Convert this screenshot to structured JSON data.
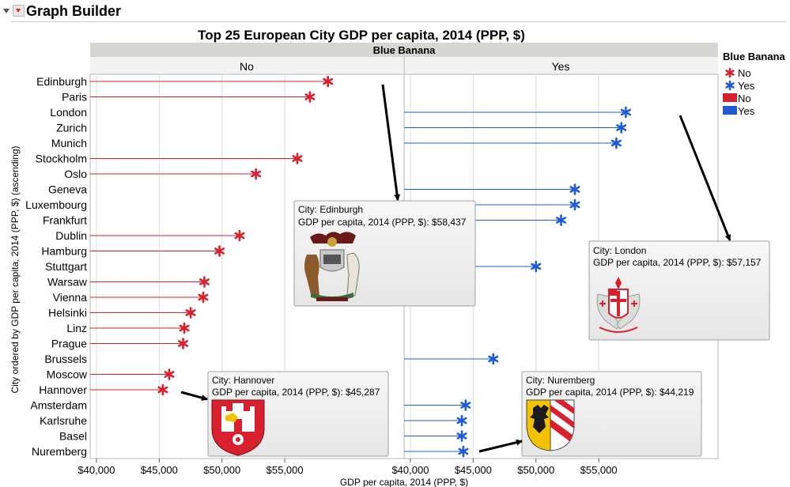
{
  "window": {
    "title": "Graph Builder"
  },
  "chart_data": {
    "type": "dot plot",
    "title": "Top 25 European City GDP per capita, 2014 (PPP, $)",
    "group_title": "Blue Banana",
    "panels": [
      "No",
      "Yes"
    ],
    "xlabel": "GDP per capita, 2014 (PPP, $)",
    "ylabel": "City ordered by GDP per capita, 2014 (PPP, $) (ascending)",
    "xlim": [
      39500,
      64500
    ],
    "x_ticks": [
      40000,
      45000,
      50000,
      55000
    ],
    "x_tick_labels": [
      "$40,000",
      "$45,000",
      "$50,000",
      "$55,000"
    ],
    "grid": true,
    "legend": {
      "title": "Blue Banana",
      "position": "right",
      "items": [
        {
          "label": "No",
          "marker": "star",
          "color": "#d8202f"
        },
        {
          "label": "Yes",
          "marker": "star",
          "color": "#1f5bd6"
        },
        {
          "label": "No",
          "marker": "swatch",
          "color": "#d8202f"
        },
        {
          "label": "Yes",
          "marker": "swatch",
          "color": "#1f5bd6"
        }
      ]
    },
    "colors": {
      "No": "#d8202f",
      "Yes": "#1f5bd6"
    },
    "cities": [
      {
        "name": "Edinburgh",
        "value": 58437,
        "blue_banana": "No"
      },
      {
        "name": "Paris",
        "value": 57000,
        "blue_banana": "No"
      },
      {
        "name": "London",
        "value": 57157,
        "blue_banana": "Yes"
      },
      {
        "name": "Zurich",
        "value": 56800,
        "blue_banana": "Yes"
      },
      {
        "name": "Munich",
        "value": 56400,
        "blue_banana": "Yes"
      },
      {
        "name": "Stockholm",
        "value": 56000,
        "blue_banana": "No"
      },
      {
        "name": "Oslo",
        "value": 52700,
        "blue_banana": "No"
      },
      {
        "name": "Geneva",
        "value": 53100,
        "blue_banana": "Yes"
      },
      {
        "name": "Luxembourg",
        "value": 53100,
        "blue_banana": "Yes"
      },
      {
        "name": "Frankfurt",
        "value": 52000,
        "blue_banana": "Yes"
      },
      {
        "name": "Dublin",
        "value": 51400,
        "blue_banana": "No"
      },
      {
        "name": "Hamburg",
        "value": 49800,
        "blue_banana": "No"
      },
      {
        "name": "Stuttgart",
        "value": 50000,
        "blue_banana": "Yes"
      },
      {
        "name": "Warsaw",
        "value": 48600,
        "blue_banana": "No"
      },
      {
        "name": "Vienna",
        "value": 48500,
        "blue_banana": "No"
      },
      {
        "name": "Helsinki",
        "value": 47500,
        "blue_banana": "No"
      },
      {
        "name": "Linz",
        "value": 47000,
        "blue_banana": "No"
      },
      {
        "name": "Prague",
        "value": 46900,
        "blue_banana": "No"
      },
      {
        "name": "Brussels",
        "value": 46600,
        "blue_banana": "Yes"
      },
      {
        "name": "Moscow",
        "value": 45800,
        "blue_banana": "No"
      },
      {
        "name": "Hannover",
        "value": 45287,
        "blue_banana": "No"
      },
      {
        "name": "Amsterdam",
        "value": 44400,
        "blue_banana": "Yes"
      },
      {
        "name": "Karlsruhe",
        "value": 44100,
        "blue_banana": "Yes"
      },
      {
        "name": "Basel",
        "value": 44100,
        "blue_banana": "Yes"
      },
      {
        "name": "Nuremberg",
        "value": 44219,
        "blue_banana": "Yes"
      }
    ],
    "annotations": [
      {
        "city": "Edinburgh",
        "line1": "City: Edinburgh",
        "line2": "GDP per capita, 2014 (PPP, $): $58,437",
        "emblem": "edinburgh-coat-of-arms"
      },
      {
        "city": "London",
        "line1": "City: London",
        "line2": "GDP per capita, 2014 (PPP, $): $57,157",
        "emblem": "london-coat-of-arms"
      },
      {
        "city": "Hannover",
        "line1": "City: Hannover",
        "line2": "GDP per capita, 2014 (PPP, $): $45,287",
        "emblem": "hannover-coat-of-arms"
      },
      {
        "city": "Nuremberg",
        "line1": "City: Nuremberg",
        "line2": "GDP per capita, 2014 (PPP, $): $44,219",
        "emblem": "nuremberg-coat-of-arms"
      }
    ]
  }
}
